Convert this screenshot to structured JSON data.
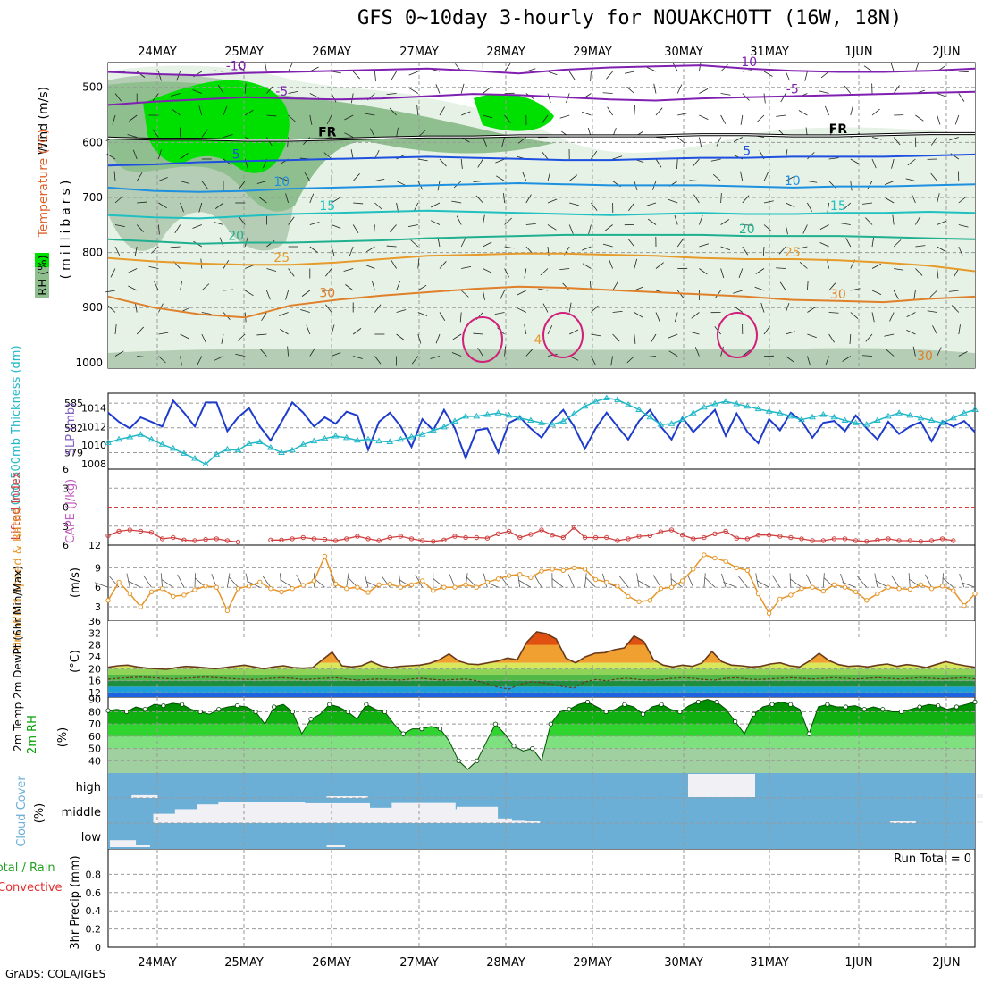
{
  "title": "GFS 0~10day 3-hourly for NOUAKCHOTT (16W, 18N)",
  "credit": "GrADS: COLA/IGES",
  "colors": {
    "rh_light": "#e6f2e6",
    "rh_mid": "#b4cdb4",
    "rh_dark": "#8fbf8f",
    "rh_green": "#00e000",
    "slp": "#1e3ccc",
    "thickness": "#22b8c8",
    "lifted": "#d04040",
    "wind10m": "#e6962a",
    "temp_fill_1": "#f0e040",
    "temp_fill_2": "#f0a030",
    "temp_fill_3": "#e05010",
    "rh2m_1": "#00a000",
    "rh2m_2": "#33cc33",
    "rh2m_3": "#80e080",
    "cloud_bg": "#6baed6",
    "cloud_fill": "#f0f0f5",
    "temp_red": "#e0602a",
    "temp_orange": "#e69a2a",
    "temp_purple": "#8020b0",
    "temp_blue": "#1e50e0"
  },
  "chart_data": [
    {
      "id": "upper_air",
      "type": "contour",
      "ylabel": "Wind (m/s)",
      "ylabel_temp": "Temperature (°C)",
      "ylabel_units": "(millibars)",
      "rh_label": "RH (%)",
      "date_labels": [
        "24MAY",
        "25MAY",
        "26MAY",
        "27MAY",
        "28MAY",
        "29MAY",
        "30MAY",
        "31MAY",
        "1JUN",
        "2JUN"
      ],
      "y_ticks": [
        500,
        600,
        700,
        800,
        900,
        1000
      ],
      "ylim": [
        455,
        1010
      ],
      "isotherms": [
        {
          "label": "-10",
          "values": [
            472,
            476,
            478,
            474,
            472,
            470,
            468,
            466,
            470,
            475,
            468,
            464,
            462,
            460,
            466,
            470,
            472,
            472,
            470,
            466
          ]
        },
        {
          "label": "-5",
          "values": [
            532,
            526,
            522,
            518,
            520,
            522,
            520,
            516,
            512,
            514,
            518,
            522,
            524,
            520,
            518,
            516,
            514,
            512,
            510,
            508
          ]
        },
        {
          "label": "FR",
          "values": [
            592,
            594,
            594,
            596,
            596,
            594,
            592,
            590,
            590,
            588,
            588,
            588,
            588,
            586,
            586,
            588,
            588,
            586,
            584,
            584
          ]
        },
        {
          "label": "5",
          "values": [
            642,
            640,
            636,
            634,
            632,
            630,
            628,
            626,
            628,
            630,
            632,
            632,
            630,
            628,
            628,
            626,
            626,
            626,
            624,
            622
          ]
        },
        {
          "label": "10",
          "values": [
            682,
            688,
            690,
            688,
            684,
            682,
            680,
            678,
            676,
            674,
            676,
            678,
            678,
            678,
            680,
            682,
            680,
            680,
            678,
            676
          ]
        },
        {
          "label": "15",
          "values": [
            732,
            736,
            738,
            734,
            730,
            728,
            726,
            724,
            726,
            728,
            730,
            732,
            730,
            728,
            730,
            730,
            728,
            728,
            726,
            728
          ]
        },
        {
          "label": "20",
          "values": [
            776,
            780,
            784,
            782,
            782,
            780,
            778,
            774,
            772,
            770,
            768,
            768,
            768,
            768,
            770,
            770,
            770,
            772,
            774,
            776
          ]
        },
        {
          "label": "25",
          "values": [
            810,
            816,
            820,
            822,
            822,
            818,
            812,
            806,
            804,
            802,
            802,
            804,
            806,
            810,
            812,
            812,
            814,
            818,
            824,
            834
          ]
        },
        {
          "label": "30",
          "values": [
            880,
            900,
            912,
            918,
            896,
            886,
            878,
            872,
            866,
            862,
            864,
            868,
            872,
            876,
            880,
            886,
            888,
            890,
            884,
            880
          ]
        }
      ],
      "isotherm_labels": [
        "-10",
        "-5",
        "FR",
        "5",
        "10",
        "15",
        "20",
        "25",
        "30",
        "-10",
        "-5",
        "FR",
        "5",
        "10",
        "15",
        "20",
        "25",
        "30",
        "30",
        "4"
      ]
    },
    {
      "id": "slp_thickness",
      "type": "line",
      "ylabel": "1000-500mb Thickness (dm)",
      "ylabel2": "SLP (mb)",
      "left_ticks": [
        "585",
        "582",
        "579"
      ],
      "right_ticks": [
        "1014",
        "1012",
        "1010",
        "1008"
      ],
      "series": [
        {
          "name": "SLP (mb)",
          "values": [
            1013.5,
            1012.5,
            1011.8,
            1013.0,
            1012.5,
            1012.0,
            1014.8,
            1013.5,
            1012.0,
            1014.6,
            1014.6,
            1011.5,
            1013.0,
            1014.0,
            1012.0,
            1010.5,
            1012.5,
            1014.6,
            1013.5,
            1012.0,
            1013.0,
            1012.3,
            1013.6,
            1013.2,
            1009.5,
            1012.5,
            1013.5,
            1012.0,
            1009.8,
            1012.8,
            1011.6,
            1013.8,
            1011.8,
            1008.6,
            1011.6,
            1011.8,
            1009.2,
            1012.4,
            1013.0,
            1011.8,
            1010.8,
            1012.6,
            1013.8,
            1012.0,
            1009.6,
            1011.8,
            1013.5,
            1012.0,
            1010.6,
            1012.6,
            1013.8,
            1012.0,
            1010.6,
            1013.0,
            1011.4,
            1012.6,
            1013.8,
            1011.0,
            1013.4,
            1011.4,
            1010.2,
            1012.8,
            1011.6,
            1013.5,
            1012.6,
            1010.8,
            1012.4,
            1012.6,
            1011.5,
            1013.2,
            1011.8,
            1010.6,
            1012.5,
            1011.2,
            1012.0,
            1012.5,
            1010.4,
            1012.6,
            1012.0,
            1012.6,
            1011.4
          ]
        },
        {
          "name": "1000-500mb Thickness (dm)",
          "values": [
            580.2,
            580.6,
            580.9,
            581.2,
            580.6,
            580.0,
            579.5,
            578.9,
            578.3,
            577.6,
            578.8,
            579.4,
            579.3,
            580.1,
            580.3,
            579.6,
            579.0,
            579.3,
            580.0,
            580.4,
            580.7,
            581.0,
            580.8,
            580.5,
            580.6,
            580.4,
            580.3,
            580.6,
            580.9,
            581.2,
            581.7,
            582.1,
            582.8,
            583.4,
            583.4,
            583.6,
            583.8,
            583.5,
            583.2,
            582.9,
            582.6,
            582.4,
            582.8,
            583.7,
            584.6,
            585.2,
            585.6,
            585.4,
            584.8,
            584.2,
            583.3,
            582.4,
            582.5,
            583.0,
            583.8,
            584.5,
            584.9,
            585.2,
            584.9,
            584.6,
            584.3,
            584.0,
            583.8,
            583.4,
            583.0,
            583.3,
            583.6,
            583.3,
            582.9,
            582.6,
            582.4,
            582.9,
            583.4,
            583.8,
            583.5,
            583.2,
            582.9,
            582.6,
            583.2,
            583.8,
            584.2
          ]
        }
      ]
    },
    {
      "id": "lifted_index",
      "type": "line",
      "ylabel": "Lifted Index",
      "ylabel2": "CAPE (J/kg)",
      "y_ticks": [
        "6",
        "3",
        "0",
        "3",
        "6"
      ],
      "series": [
        {
          "name": "Lifted Index",
          "values": [
            4.5,
            3.8,
            3.6,
            3.8,
            4.0,
            5.0,
            4.8,
            5.2,
            5.3,
            5.1,
            5.0,
            5.3,
            5.5,
            null,
            null,
            5.2,
            5.2,
            5.0,
            4.8,
            5.0,
            5.1,
            5.3,
            5.0,
            4.6,
            5.0,
            5.3,
            4.8,
            4.6,
            5.0,
            5.3,
            5.4,
            5.2,
            4.6,
            4.8,
            4.8,
            4.9,
            4.2,
            3.8,
            4.8,
            4.3,
            3.6,
            4.4,
            4.8,
            3.2,
            4.8,
            4.8,
            4.8,
            5.3,
            5.0,
            4.6,
            4.5,
            3.9,
            3.6,
            4.4,
            5.0,
            4.8,
            4.2,
            3.8,
            4.9,
            5.0,
            4.4,
            4.4,
            4.6,
            4.8,
            5.0,
            5.3,
            5.3,
            5.0,
            5.0,
            5.3,
            5.4,
            5.2,
            5.0,
            5.3,
            5.3,
            5.4,
            5.3,
            5.0,
            5.3,
            null,
            null
          ]
        }
      ]
    },
    {
      "id": "wind_10m",
      "type": "line",
      "ylabel": "10m Wind Speed & Barbs",
      "yunits": "(m/s)",
      "y_ticks": [
        "12",
        "9",
        "6",
        "3"
      ],
      "series": [
        {
          "name": "10m Wind",
          "values": [
            4.0,
            6.8,
            5.0,
            3.0,
            5.3,
            5.8,
            4.6,
            4.8,
            5.6,
            6.2,
            6.0,
            2.4,
            5.8,
            6.2,
            6.8,
            5.8,
            5.3,
            5.8,
            6.3,
            7.0,
            10.8,
            6.5,
            5.8,
            6.0,
            5.2,
            6.4,
            6.5,
            6.0,
            6.4,
            7.0,
            5.5,
            6.0,
            6.0,
            6.4,
            6.0,
            6.8,
            7.3,
            7.8,
            8.0,
            7.5,
            8.5,
            8.8,
            8.6,
            9.0,
            8.8,
            7.2,
            6.8,
            6.2,
            4.6,
            3.8,
            4.0,
            5.8,
            6.0,
            7.0,
            8.8,
            11.0,
            10.5,
            10.0,
            9.0,
            8.6,
            5.0,
            2.0,
            4.2,
            4.8,
            5.8,
            6.0,
            5.4,
            6.4,
            6.0,
            5.3,
            4.0,
            5.0,
            6.0,
            5.8,
            5.7,
            6.4,
            5.8,
            6.2,
            5.5,
            3.2,
            5.0
          ]
        }
      ]
    },
    {
      "id": "temperature_2m",
      "type": "area",
      "ylabel": "2m Temp 2m DewPt (6hr Min/Max)",
      "yunits": "(°C)",
      "y_ticks": [
        "36",
        "32",
        "28",
        "24",
        "20",
        "16",
        "12"
      ],
      "series": [
        {
          "name": "2m Temp",
          "values": [
            20.5,
            21.0,
            21.2,
            20.6,
            20.2,
            20.0,
            19.8,
            20.4,
            20.8,
            20.6,
            20.3,
            20.0,
            20.4,
            20.8,
            21.2,
            20.6,
            20.0,
            20.6,
            21.0,
            20.4,
            20.2,
            20.4,
            23.0,
            25.6,
            21.0,
            20.6,
            21.0,
            22.4,
            21.0,
            20.4,
            20.8,
            21.0,
            21.2,
            21.8,
            23.0,
            25.0,
            22.6,
            21.6,
            21.4,
            22.0,
            22.6,
            23.6,
            23.0,
            29.0,
            32.4,
            31.8,
            30.0,
            23.6,
            22.0,
            24.0,
            25.2,
            25.4,
            26.4,
            27.0,
            31.0,
            29.2,
            23.0,
            21.2,
            20.6,
            21.2,
            20.8,
            22.0,
            25.8,
            22.4,
            21.2,
            21.0,
            20.6,
            20.8,
            21.6,
            22.0,
            21.0,
            20.6,
            22.6,
            25.2,
            22.8,
            21.4,
            20.8,
            21.0,
            20.6,
            21.2,
            21.6,
            20.8,
            21.4,
            21.0,
            20.4,
            21.4,
            22.4,
            21.6,
            21.0,
            20.5
          ]
        },
        {
          "name": "2m DewPt",
          "values": [
            16.5,
            16.8,
            17.0,
            17.2,
            17.0,
            16.8,
            16.6,
            16.8,
            17.0,
            17.2,
            17.0,
            16.8,
            16.6,
            16.4,
            16.5,
            16.8,
            17.0,
            16.8,
            16.4,
            16.6,
            16.8,
            17.0,
            16.6,
            16.2,
            16.4,
            16.6,
            16.4,
            16.2,
            16.6,
            16.8,
            16.4,
            16.2,
            16.4,
            16.6,
            16.0,
            15.0,
            13.8,
            13.2,
            14.8,
            15.6,
            15.4,
            14.8,
            14.0,
            13.6,
            15.6,
            16.4,
            16.0,
            16.6,
            16.8,
            16.4,
            16.2,
            16.4,
            16.8,
            17.0,
            16.8,
            16.4,
            16.2,
            16.8,
            17.0,
            16.6,
            16.4,
            16.6,
            16.8,
            17.0,
            16.8,
            16.6,
            16.8,
            17.0,
            16.8,
            16.6,
            16.8,
            17.0,
            16.8,
            16.6,
            16.8,
            17.0,
            16.8,
            16.6,
            16.8,
            17.0,
            16.6
          ]
        }
      ]
    },
    {
      "id": "rh_2m",
      "type": "area",
      "ylabel": "2m RH",
      "yunits": "(%)",
      "y_ticks": [
        "90",
        "80",
        "70",
        "60",
        "50",
        "40"
      ],
      "series": [
        {
          "name": "2m RH",
          "values": [
            81,
            82,
            80,
            84,
            82,
            86,
            85,
            87,
            86,
            82,
            80,
            78,
            82,
            84,
            85,
            84,
            80,
            70,
            84,
            86,
            80,
            62,
            74,
            78,
            86,
            84,
            80,
            74,
            86,
            82,
            80,
            70,
            62,
            66,
            66,
            68,
            66,
            56,
            40,
            33,
            40,
            55,
            70,
            62,
            52,
            48,
            50,
            40,
            70,
            80,
            82,
            86,
            88,
            84,
            80,
            82,
            86,
            84,
            78,
            84,
            86,
            82,
            80,
            85,
            88,
            90,
            88,
            82,
            72,
            62,
            78,
            84,
            86,
            88,
            86,
            82,
            62,
            84,
            86,
            84,
            84,
            85,
            82,
            84,
            82,
            80,
            80,
            82,
            84,
            86,
            85,
            82,
            84,
            86,
            88
          ]
        }
      ]
    },
    {
      "id": "cloud_cover",
      "type": "heatmap",
      "ylabel": "Cloud Cover",
      "yunits": "(%)",
      "y_ticks": [
        "high",
        "middle",
        "low"
      ]
    },
    {
      "id": "precip_3hr",
      "type": "bar",
      "ylabel": "Total / Rain",
      "ylabel2": "Convective",
      "ylabel3": "3hr Precip (mm)",
      "y_ticks": [
        "0.8",
        "0.6",
        "0.4",
        "0.2",
        "0"
      ],
      "run_total": "Run Total = 0",
      "values": []
    }
  ]
}
